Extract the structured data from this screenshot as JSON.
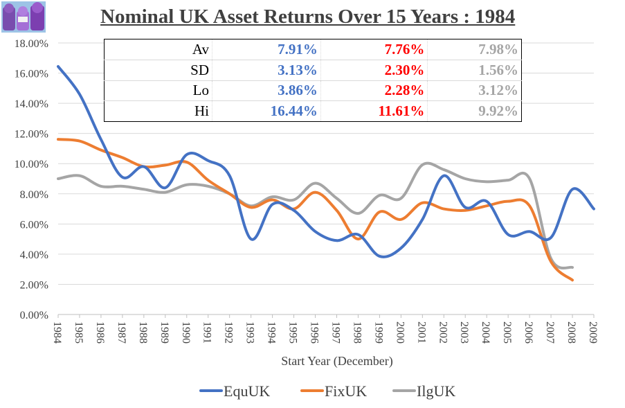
{
  "title": "Nominal UK Asset Returns Over 15 Years : 1984",
  "colors": {
    "EquUK": "#4472c4",
    "FixUK": "#ed7d31",
    "IlgUK": "#a5a5a5"
  },
  "stats_table": {
    "rows": [
      {
        "label": "Av",
        "EquUK": "7.91%",
        "FixUK": "7.76%",
        "IlgUK": "7.98%"
      },
      {
        "label": "SD",
        "EquUK": "3.13%",
        "FixUK": "2.30%",
        "IlgUK": "1.56%"
      },
      {
        "label": "Lo",
        "EquUK": "3.86%",
        "FixUK": "2.28%",
        "IlgUK": "3.12%"
      },
      {
        "label": "Hi",
        "EquUK": "16.44%",
        "FixUK": "11.61%",
        "IlgUK": "9.92%"
      }
    ]
  },
  "chart_data": {
    "type": "line",
    "title": "Nominal UK Asset Returns Over 15 Years : 1984",
    "xlabel": "Start Year (December)",
    "ylabel": "",
    "ylim": [
      0,
      18
    ],
    "y_ticks": [
      "0.00%",
      "2.00%",
      "4.00%",
      "6.00%",
      "8.00%",
      "10.00%",
      "12.00%",
      "14.00%",
      "16.00%",
      "18.00%"
    ],
    "categories": [
      "1984",
      "1985",
      "1986",
      "1987",
      "1988",
      "1989",
      "1990",
      "1991",
      "1992",
      "1993",
      "1994",
      "1995",
      "1996",
      "1997",
      "1998",
      "1999",
      "2000",
      "2001",
      "2002",
      "2003",
      "2004",
      "2005",
      "2006",
      "2007",
      "2008",
      "2009"
    ],
    "legend_position": "bottom",
    "grid": true,
    "series": [
      {
        "name": "EquUK",
        "values": [
          16.44,
          14.6,
          11.6,
          9.1,
          9.8,
          8.4,
          10.6,
          10.2,
          9.2,
          5.0,
          7.3,
          6.9,
          5.5,
          4.9,
          5.3,
          3.86,
          4.4,
          6.3,
          9.2,
          7.1,
          7.5,
          5.3,
          5.5,
          5.1,
          8.3,
          7.0
        ]
      },
      {
        "name": "FixUK",
        "values": [
          11.61,
          11.5,
          10.9,
          10.4,
          9.8,
          9.9,
          10.1,
          8.9,
          8.0,
          7.1,
          7.6,
          7.0,
          8.1,
          6.9,
          5.0,
          6.8,
          6.3,
          7.4,
          7.0,
          6.9,
          7.2,
          7.5,
          7.2,
          3.5,
          2.28,
          null
        ]
      },
      {
        "name": "IlgUK",
        "values": [
          9.0,
          9.2,
          8.5,
          8.5,
          8.3,
          8.1,
          8.6,
          8.5,
          8.0,
          7.2,
          7.8,
          7.6,
          8.7,
          7.7,
          6.7,
          7.9,
          7.7,
          9.92,
          9.6,
          9.0,
          8.8,
          8.9,
          9.0,
          3.7,
          3.12,
          null
        ]
      }
    ]
  }
}
